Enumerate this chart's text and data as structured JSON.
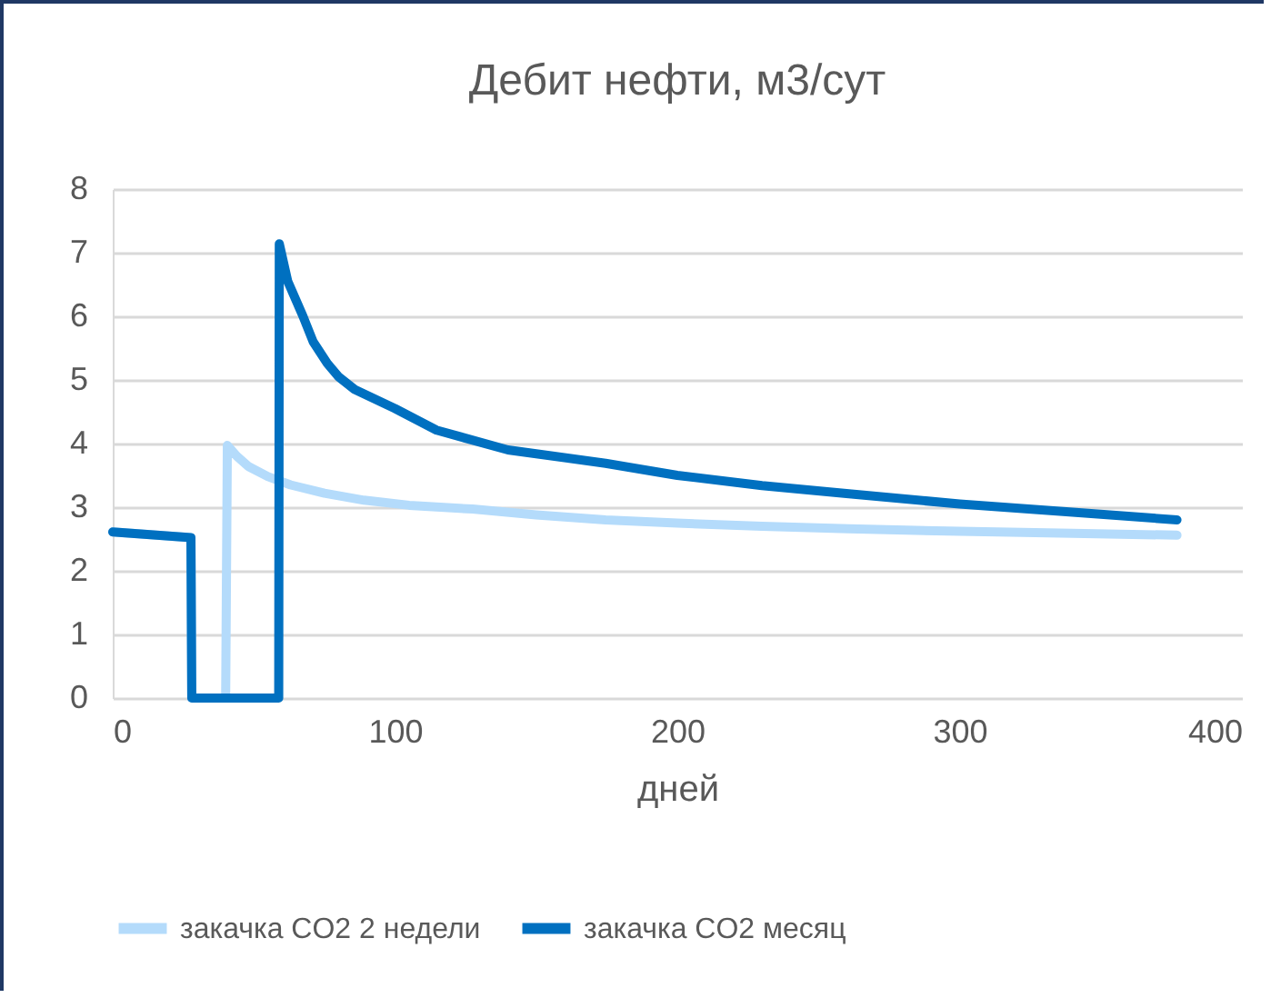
{
  "chart_data": {
    "type": "line",
    "title": "Дебит нефти, м3/сут",
    "xlabel": "дней",
    "xlim": [
      0,
      400
    ],
    "xticks": [
      0,
      100,
      200,
      300,
      400
    ],
    "ylim": [
      0,
      8
    ],
    "yticks": [
      0,
      1,
      2,
      3,
      4,
      5,
      6,
      7,
      8
    ],
    "grid": "y",
    "legend": "bottom",
    "marker": "none",
    "line_style": "solid",
    "series": [
      {
        "name": "закачка CO2 2 недели",
        "color": "#b4dbfb",
        "x": [
          0,
          27.7,
          28,
          40,
          40.6,
          44,
          48.1,
          55,
          63,
          75,
          89,
          105,
          127.5,
          150,
          174.6,
          200,
          230,
          260.8,
          300,
          340,
          377
        ],
        "values": [
          2.61,
          2.52,
          0,
          0,
          3.97,
          3.8,
          3.64,
          3.48,
          3.35,
          3.22,
          3.11,
          3.03,
          2.97,
          2.88,
          2.8,
          2.75,
          2.7,
          2.66,
          2.62,
          2.59,
          2.56
        ]
      },
      {
        "name": "закачка CO2 месяц",
        "color": "#0070c0",
        "x": [
          0,
          27.7,
          28,
          58.8,
          59,
          62,
          67.4,
          71,
          76,
          80,
          85.7,
          100,
          114.7,
          140,
          174.6,
          200,
          230,
          260.8,
          300,
          340,
          377
        ],
        "values": [
          2.61,
          2.52,
          0,
          0,
          7.14,
          6.55,
          6.0,
          5.6,
          5.26,
          5.05,
          4.85,
          4.55,
          4.21,
          3.9,
          3.69,
          3.5,
          3.34,
          3.21,
          3.05,
          2.92,
          2.8
        ]
      }
    ]
  }
}
